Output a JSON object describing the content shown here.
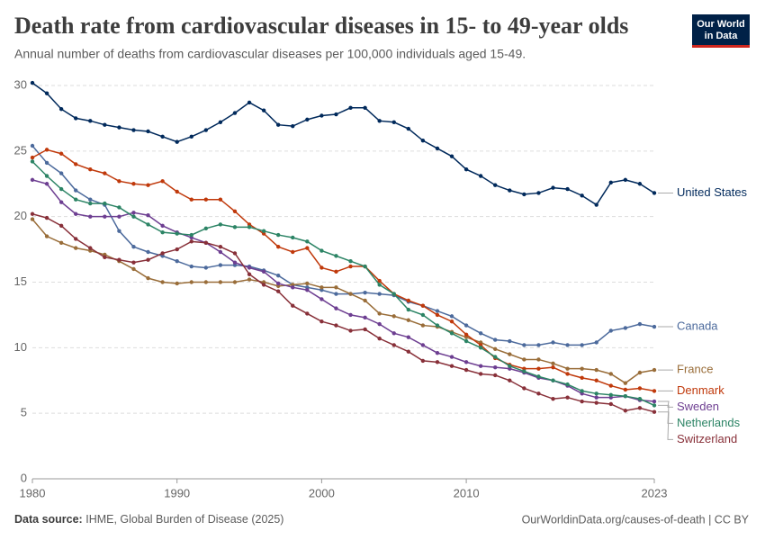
{
  "chart_data": {
    "type": "line",
    "title": "Death rate from cardiovascular diseases in 15- to 49-year olds",
    "subtitle": "Annual number of deaths from cardiovascular diseases per 100,000 individuals aged 15-49.",
    "logo": [
      "Our World",
      "in Data"
    ],
    "source_label": "Data source:",
    "source": "IHME, Global Burden of Disease (2025)",
    "footer": "OurWorldinData.org/causes-of-death | CC BY",
    "x": [
      1980,
      1981,
      1982,
      1983,
      1984,
      1985,
      1986,
      1987,
      1988,
      1989,
      1990,
      1991,
      1992,
      1993,
      1994,
      1995,
      1996,
      1997,
      1998,
      1999,
      2000,
      2001,
      2002,
      2003,
      2004,
      2005,
      2006,
      2007,
      2008,
      2009,
      2010,
      2011,
      2012,
      2013,
      2014,
      2015,
      2016,
      2017,
      2018,
      2019,
      2020,
      2021,
      2022,
      2023
    ],
    "xlim": [
      1980,
      2023
    ],
    "xticks": [
      1980,
      1990,
      2000,
      2010,
      2023
    ],
    "ylim": [
      0,
      30
    ],
    "yticks": [
      0,
      5,
      10,
      15,
      20,
      25,
      30
    ],
    "grid": true,
    "series": [
      {
        "name": "United States",
        "color": "#00295b",
        "values": [
          30.2,
          29.4,
          28.2,
          27.5,
          27.3,
          27.0,
          26.8,
          26.6,
          26.5,
          26.1,
          25.7,
          26.1,
          26.6,
          27.2,
          27.9,
          28.7,
          28.1,
          27.0,
          26.9,
          27.4,
          27.7,
          27.8,
          28.3,
          28.3,
          27.3,
          27.2,
          26.7,
          25.8,
          25.2,
          24.6,
          23.6,
          23.1,
          22.4,
          22.0,
          21.7,
          21.8,
          22.2,
          22.1,
          21.6,
          20.9,
          22.6,
          22.8,
          22.5,
          21.8
        ]
      },
      {
        "name": "Canada",
        "color": "#4c6a9c",
        "values": [
          25.4,
          24.1,
          23.3,
          22.0,
          21.3,
          20.9,
          18.9,
          17.7,
          17.3,
          17.0,
          16.6,
          16.2,
          16.1,
          16.3,
          16.3,
          16.2,
          15.9,
          15.5,
          14.8,
          14.6,
          14.4,
          14.1,
          14.1,
          14.2,
          14.1,
          14.0,
          13.5,
          13.2,
          12.8,
          12.4,
          11.7,
          11.1,
          10.6,
          10.5,
          10.2,
          10.2,
          10.4,
          10.2,
          10.2,
          10.4,
          11.3,
          11.5,
          11.8,
          11.6
        ]
      },
      {
        "name": "France",
        "color": "#996d39",
        "values": [
          19.8,
          18.5,
          18.0,
          17.6,
          17.4,
          17.1,
          16.6,
          16.0,
          15.3,
          15.0,
          14.9,
          15.0,
          15.0,
          15.0,
          15.0,
          15.2,
          15.0,
          14.7,
          14.8,
          14.9,
          14.6,
          14.6,
          14.1,
          13.6,
          12.6,
          12.4,
          12.1,
          11.7,
          11.6,
          11.2,
          10.8,
          10.4,
          9.9,
          9.5,
          9.1,
          9.1,
          8.8,
          8.4,
          8.4,
          8.3,
          8.0,
          7.3,
          8.1,
          8.3
        ]
      },
      {
        "name": "Denmark",
        "color": "#c0390b",
        "values": [
          24.5,
          25.1,
          24.8,
          24.0,
          23.6,
          23.3,
          22.7,
          22.5,
          22.4,
          22.7,
          21.9,
          21.3,
          21.3,
          21.3,
          20.4,
          19.4,
          18.7,
          17.7,
          17.3,
          17.6,
          16.1,
          15.8,
          16.2,
          16.2,
          15.1,
          14.1,
          13.6,
          13.2,
          12.5,
          12.0,
          11.0,
          10.2,
          9.2,
          8.7,
          8.4,
          8.4,
          8.5,
          8.0,
          7.7,
          7.5,
          7.1,
          6.8,
          6.9,
          6.7
        ]
      },
      {
        "name": "Sweden",
        "color": "#6d3e91",
        "values": [
          22.8,
          22.5,
          21.1,
          20.2,
          20.0,
          20.0,
          20.0,
          20.3,
          20.1,
          19.3,
          18.8,
          18.4,
          18.0,
          17.3,
          16.5,
          16.1,
          15.8,
          14.9,
          14.6,
          14.4,
          13.7,
          13.0,
          12.5,
          12.3,
          11.8,
          11.1,
          10.8,
          10.2,
          9.6,
          9.3,
          8.9,
          8.6,
          8.5,
          8.4,
          8.1,
          7.7,
          7.5,
          7.1,
          6.5,
          6.2,
          6.2,
          6.3,
          6.0,
          5.9
        ]
      },
      {
        "name": "Netherlands",
        "color": "#2c8465",
        "values": [
          24.2,
          23.1,
          22.1,
          21.3,
          21.0,
          21.0,
          20.7,
          20.0,
          19.4,
          18.8,
          18.7,
          18.6,
          19.1,
          19.4,
          19.2,
          19.2,
          18.9,
          18.6,
          18.4,
          18.1,
          17.4,
          17.0,
          16.6,
          16.2,
          14.8,
          14.1,
          12.9,
          12.5,
          11.7,
          11.1,
          10.5,
          10.0,
          9.3,
          8.6,
          8.2,
          7.8,
          7.5,
          7.2,
          6.7,
          6.5,
          6.4,
          6.3,
          6.1,
          5.6
        ]
      },
      {
        "name": "Switzerland",
        "color": "#883039",
        "values": [
          20.2,
          19.9,
          19.3,
          18.3,
          17.6,
          16.9,
          16.7,
          16.5,
          16.7,
          17.2,
          17.5,
          18.1,
          18.0,
          17.7,
          17.2,
          15.6,
          14.8,
          14.3,
          13.2,
          12.6,
          12.0,
          11.7,
          11.3,
          11.4,
          10.7,
          10.2,
          9.7,
          9.0,
          8.9,
          8.6,
          8.3,
          8.0,
          7.9,
          7.5,
          6.9,
          6.5,
          6.1,
          6.2,
          5.9,
          5.8,
          5.7,
          5.2,
          5.4,
          5.1
        ]
      }
    ]
  }
}
